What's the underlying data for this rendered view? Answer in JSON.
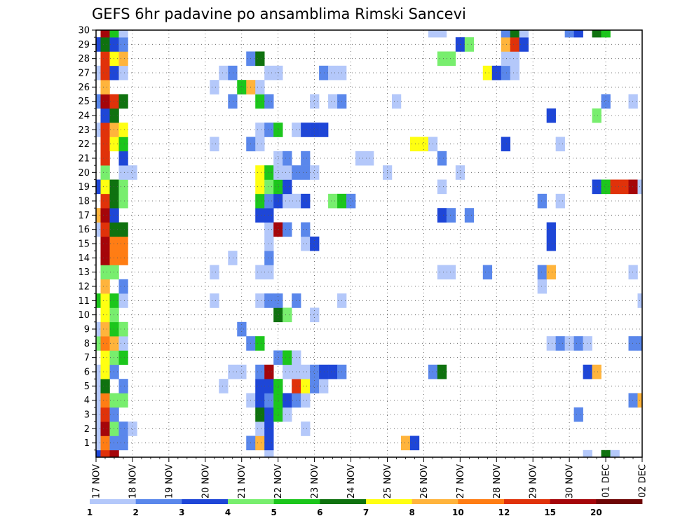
{
  "chart_data": {
    "type": "heatmap",
    "title": "GEFS 6hr padavine po ansamblima Rimski Sancevi",
    "xlabel": "",
    "ylabel": "",
    "x_tick_labels": [
      "17 NOV",
      "18 NOV",
      "19 NOV",
      "20 NOV",
      "21 NOV",
      "22 NOV",
      "23 NOV",
      "24 NOV",
      "25 NOV",
      "26 NOV",
      "27 NOV",
      "28 NOV",
      "29 NOV",
      "30 NOV",
      "01 DEC",
      "02 DEC"
    ],
    "y_tick_labels": [
      "1",
      "2",
      "3",
      "4",
      "5",
      "6",
      "7",
      "8",
      "9",
      "10",
      "11",
      "12",
      "13",
      "14",
      "15",
      "16",
      "17",
      "18",
      "19",
      "20",
      "21",
      "22",
      "23",
      "24",
      "25",
      "26",
      "27",
      "28",
      "29",
      "30"
    ],
    "y_range": [
      0,
      30
    ],
    "time_steps": 61,
    "grid": true,
    "legend_position": "bottom",
    "colorbar": {
      "tick_labels": [
        "1",
        "2",
        "3",
        "4",
        "5",
        "6",
        "7",
        "8",
        "10",
        "12",
        "15",
        "20"
      ],
      "colors": [
        "#b4c8fa",
        "#5a87eb",
        "#1e46d7",
        "#78ee6e",
        "#1cc61c",
        "#0f720f",
        "#ffff12",
        "#ffb43c",
        "#ff7d14",
        "#e0320a",
        "#a5050a",
        "#6e0505"
      ]
    },
    "cells": [
      [
        0,
        0,
        "#1e46d7"
      ],
      [
        1,
        0,
        "#e0320a"
      ],
      [
        2,
        0,
        "#a5050a"
      ],
      [
        19,
        0,
        "#b4c8fa"
      ],
      [
        54,
        0,
        "#b4c8fa"
      ],
      [
        56,
        0,
        "#0f720f"
      ],
      [
        57,
        0,
        "#b4c8fa"
      ],
      [
        0,
        1,
        "#b4c8fa"
      ],
      [
        1,
        1,
        "#ff7d14"
      ],
      [
        2,
        1,
        "#5a87eb"
      ],
      [
        3,
        1,
        "#5a87eb"
      ],
      [
        17,
        1,
        "#5a87eb"
      ],
      [
        18,
        1,
        "#ffb43c"
      ],
      [
        19,
        1,
        "#1e46d7"
      ],
      [
        34,
        1,
        "#ffb43c"
      ],
      [
        35,
        1,
        "#1e46d7"
      ],
      [
        0,
        2,
        "#b4c8fa"
      ],
      [
        1,
        2,
        "#a5050a"
      ],
      [
        2,
        2,
        "#78ee6e"
      ],
      [
        3,
        2,
        "#5a87eb"
      ],
      [
        4,
        2,
        "#b4c8fa"
      ],
      [
        18,
        2,
        "#b4c8fa"
      ],
      [
        19,
        2,
        "#1e46d7"
      ],
      [
        23,
        2,
        "#b4c8fa"
      ],
      [
        0,
        3,
        "#b4c8fa"
      ],
      [
        1,
        3,
        "#e0320a"
      ],
      [
        2,
        3,
        "#5a87eb"
      ],
      [
        18,
        3,
        "#0f720f"
      ],
      [
        19,
        3,
        "#1e46d7"
      ],
      [
        20,
        3,
        "#1cc61c"
      ],
      [
        21,
        3,
        "#b4c8fa"
      ],
      [
        53,
        3,
        "#5a87eb"
      ],
      [
        0,
        4,
        "#b4c8fa"
      ],
      [
        1,
        4,
        "#ff7d14"
      ],
      [
        2,
        4,
        "#78ee6e"
      ],
      [
        3,
        4,
        "#78ee6e"
      ],
      [
        17,
        4,
        "#b4c8fa"
      ],
      [
        18,
        4,
        "#1e46d7"
      ],
      [
        19,
        4,
        "#5a87eb"
      ],
      [
        20,
        4,
        "#1cc61c"
      ],
      [
        21,
        4,
        "#1e46d7"
      ],
      [
        22,
        4,
        "#5a87eb"
      ],
      [
        23,
        4,
        "#b4c8fa"
      ],
      [
        59,
        4,
        "#5a87eb"
      ],
      [
        60,
        4,
        "#ffb43c"
      ],
      [
        0,
        5,
        "#b4c8fa"
      ],
      [
        1,
        5,
        "#0f720f"
      ],
      [
        3,
        5,
        "#5a87eb"
      ],
      [
        14,
        5,
        "#b4c8fa"
      ],
      [
        18,
        5,
        "#1e46d7"
      ],
      [
        19,
        5,
        "#1e46d7"
      ],
      [
        20,
        5,
        "#1cc61c"
      ],
      [
        22,
        5,
        "#e0320a"
      ],
      [
        23,
        5,
        "#ffff12"
      ],
      [
        24,
        5,
        "#5a87eb"
      ],
      [
        25,
        5,
        "#b4c8fa"
      ],
      [
        0,
        6,
        "#b4c8fa"
      ],
      [
        1,
        6,
        "#ffff12"
      ],
      [
        2,
        6,
        "#5a87eb"
      ],
      [
        15,
        6,
        "#b4c8fa"
      ],
      [
        16,
        6,
        "#b4c8fa"
      ],
      [
        18,
        6,
        "#5a87eb"
      ],
      [
        19,
        6,
        "#a5050a"
      ],
      [
        21,
        6,
        "#b4c8fa"
      ],
      [
        22,
        6,
        "#b4c8fa"
      ],
      [
        23,
        6,
        "#b4c8fa"
      ],
      [
        24,
        6,
        "#5a87eb"
      ],
      [
        25,
        6,
        "#1e46d7"
      ],
      [
        26,
        6,
        "#1e46d7"
      ],
      [
        27,
        6,
        "#5a87eb"
      ],
      [
        37,
        6,
        "#5a87eb"
      ],
      [
        38,
        6,
        "#0f720f"
      ],
      [
        54,
        6,
        "#1e46d7"
      ],
      [
        55,
        6,
        "#ffb43c"
      ],
      [
        1,
        7,
        "#ffff12"
      ],
      [
        2,
        7,
        "#78ee6e"
      ],
      [
        3,
        7,
        "#1cc61c"
      ],
      [
        20,
        7,
        "#5a87eb"
      ],
      [
        21,
        7,
        "#1cc61c"
      ],
      [
        22,
        7,
        "#b4c8fa"
      ],
      [
        0,
        8,
        "#78ee6e"
      ],
      [
        1,
        8,
        "#ff7d14"
      ],
      [
        2,
        8,
        "#ffb43c"
      ],
      [
        3,
        8,
        "#b4c8fa"
      ],
      [
        17,
        8,
        "#5a87eb"
      ],
      [
        18,
        8,
        "#1cc61c"
      ],
      [
        50,
        8,
        "#b4c8fa"
      ],
      [
        51,
        8,
        "#5a87eb"
      ],
      [
        52,
        8,
        "#b4c8fa"
      ],
      [
        53,
        8,
        "#5a87eb"
      ],
      [
        54,
        8,
        "#b4c8fa"
      ],
      [
        59,
        8,
        "#5a87eb"
      ],
      [
        60,
        8,
        "#5a87eb"
      ],
      [
        0,
        9,
        "#b4c8fa"
      ],
      [
        1,
        9,
        "#ffb43c"
      ],
      [
        2,
        9,
        "#1cc61c"
      ],
      [
        3,
        9,
        "#78ee6e"
      ],
      [
        16,
        9,
        "#5a87eb"
      ],
      [
        1,
        10,
        "#ffff12"
      ],
      [
        2,
        10,
        "#78ee6e"
      ],
      [
        20,
        10,
        "#0f720f"
      ],
      [
        21,
        10,
        "#78ee6e"
      ],
      [
        24,
        10,
        "#b4c8fa"
      ],
      [
        0,
        11,
        "#1cc61c"
      ],
      [
        1,
        11,
        "#ffff12"
      ],
      [
        2,
        11,
        "#1cc61c"
      ],
      [
        3,
        11,
        "#b4c8fa"
      ],
      [
        13,
        11,
        "#b4c8fa"
      ],
      [
        18,
        11,
        "#b4c8fa"
      ],
      [
        19,
        11,
        "#5a87eb"
      ],
      [
        20,
        11,
        "#5a87eb"
      ],
      [
        22,
        11,
        "#5a87eb"
      ],
      [
        27,
        11,
        "#b4c8fa"
      ],
      [
        60,
        11,
        "#b4c8fa"
      ],
      [
        1,
        12,
        "#ffb43c"
      ],
      [
        3,
        12,
        "#5a87eb"
      ],
      [
        49,
        12,
        "#b4c8fa"
      ],
      [
        1,
        13,
        "#78ee6e"
      ],
      [
        2,
        13,
        "#78ee6e"
      ],
      [
        13,
        13,
        "#b4c8fa"
      ],
      [
        18,
        13,
        "#b4c8fa"
      ],
      [
        19,
        13,
        "#b4c8fa"
      ],
      [
        38,
        13,
        "#b4c8fa"
      ],
      [
        39,
        13,
        "#b4c8fa"
      ],
      [
        43,
        13,
        "#5a87eb"
      ],
      [
        49,
        13,
        "#5a87eb"
      ],
      [
        50,
        13,
        "#ffb43c"
      ],
      [
        59,
        13,
        "#b4c8fa"
      ],
      [
        1,
        14,
        "#a5050a"
      ],
      [
        2,
        14,
        "#ff7d14"
      ],
      [
        3,
        14,
        "#ff7d14"
      ],
      [
        15,
        14,
        "#b4c8fa"
      ],
      [
        19,
        14,
        "#5a87eb"
      ],
      [
        1,
        15,
        "#a5050a"
      ],
      [
        2,
        15,
        "#ff7d14"
      ],
      [
        3,
        15,
        "#ff7d14"
      ],
      [
        19,
        15,
        "#b4c8fa"
      ],
      [
        23,
        15,
        "#b4c8fa"
      ],
      [
        24,
        15,
        "#1e46d7"
      ],
      [
        50,
        15,
        "#1e46d7"
      ],
      [
        0,
        16,
        "#b4c8fa"
      ],
      [
        1,
        16,
        "#e0320a"
      ],
      [
        2,
        16,
        "#0f720f"
      ],
      [
        3,
        16,
        "#0f720f"
      ],
      [
        19,
        16,
        "#b4c8fa"
      ],
      [
        20,
        16,
        "#a5050a"
      ],
      [
        21,
        16,
        "#5a87eb"
      ],
      [
        23,
        16,
        "#5a87eb"
      ],
      [
        50,
        16,
        "#1e46d7"
      ],
      [
        0,
        17,
        "#ffb43c"
      ],
      [
        1,
        17,
        "#a5050a"
      ],
      [
        2,
        17,
        "#1e46d7"
      ],
      [
        18,
        17,
        "#1e46d7"
      ],
      [
        19,
        17,
        "#1e46d7"
      ],
      [
        38,
        17,
        "#1e46d7"
      ],
      [
        39,
        17,
        "#5a87eb"
      ],
      [
        41,
        17,
        "#5a87eb"
      ],
      [
        1,
        18,
        "#e0320a"
      ],
      [
        2,
        18,
        "#0f720f"
      ],
      [
        3,
        18,
        "#78ee6e"
      ],
      [
        18,
        18,
        "#1cc61c"
      ],
      [
        19,
        18,
        "#5a87eb"
      ],
      [
        20,
        18,
        "#1e46d7"
      ],
      [
        21,
        18,
        "#b4c8fa"
      ],
      [
        22,
        18,
        "#b4c8fa"
      ],
      [
        23,
        18,
        "#1e46d7"
      ],
      [
        26,
        18,
        "#78ee6e"
      ],
      [
        27,
        18,
        "#1cc61c"
      ],
      [
        28,
        18,
        "#5a87eb"
      ],
      [
        49,
        18,
        "#5a87eb"
      ],
      [
        51,
        18,
        "#b4c8fa"
      ],
      [
        0,
        19,
        "#1e46d7"
      ],
      [
        1,
        19,
        "#ffff12"
      ],
      [
        2,
        19,
        "#0f720f"
      ],
      [
        3,
        19,
        "#78ee6e"
      ],
      [
        18,
        19,
        "#ffff12"
      ],
      [
        19,
        19,
        "#78ee6e"
      ],
      [
        20,
        19,
        "#1cc61c"
      ],
      [
        21,
        19,
        "#1e46d7"
      ],
      [
        38,
        19,
        "#b4c8fa"
      ],
      [
        55,
        19,
        "#1e46d7"
      ],
      [
        56,
        19,
        "#1cc61c"
      ],
      [
        57,
        19,
        "#e0320a"
      ],
      [
        58,
        19,
        "#e0320a"
      ],
      [
        59,
        19,
        "#a5050a"
      ],
      [
        60,
        19,
        "#b4c8fa"
      ],
      [
        1,
        20,
        "#78ee6e"
      ],
      [
        3,
        20,
        "#b4c8fa"
      ],
      [
        4,
        20,
        "#b4c8fa"
      ],
      [
        18,
        20,
        "#ffff12"
      ],
      [
        19,
        20,
        "#1cc61c"
      ],
      [
        20,
        20,
        "#b4c8fa"
      ],
      [
        21,
        20,
        "#b4c8fa"
      ],
      [
        22,
        20,
        "#5a87eb"
      ],
      [
        23,
        20,
        "#5a87eb"
      ],
      [
        24,
        20,
        "#b4c8fa"
      ],
      [
        32,
        20,
        "#b4c8fa"
      ],
      [
        40,
        20,
        "#b4c8fa"
      ],
      [
        1,
        21,
        "#e0320a"
      ],
      [
        3,
        21,
        "#1e46d7"
      ],
      [
        20,
        21,
        "#b4c8fa"
      ],
      [
        21,
        21,
        "#5a87eb"
      ],
      [
        23,
        21,
        "#5a87eb"
      ],
      [
        29,
        21,
        "#b4c8fa"
      ],
      [
        30,
        21,
        "#b4c8fa"
      ],
      [
        38,
        21,
        "#5a87eb"
      ],
      [
        1,
        22,
        "#e0320a"
      ],
      [
        2,
        22,
        "#ffff12"
      ],
      [
        3,
        22,
        "#1cc61c"
      ],
      [
        13,
        22,
        "#b4c8fa"
      ],
      [
        17,
        22,
        "#5a87eb"
      ],
      [
        18,
        22,
        "#b4c8fa"
      ],
      [
        35,
        22,
        "#ffff12"
      ],
      [
        36,
        22,
        "#ffff12"
      ],
      [
        37,
        22,
        "#b4c8fa"
      ],
      [
        45,
        22,
        "#1e46d7"
      ],
      [
        51,
        22,
        "#b4c8fa"
      ],
      [
        0,
        23,
        "#b4c8fa"
      ],
      [
        1,
        23,
        "#e0320a"
      ],
      [
        2,
        23,
        "#ffb43c"
      ],
      [
        3,
        23,
        "#ffff12"
      ],
      [
        18,
        23,
        "#b4c8fa"
      ],
      [
        19,
        23,
        "#5a87eb"
      ],
      [
        20,
        23,
        "#1cc61c"
      ],
      [
        22,
        23,
        "#b4c8fa"
      ],
      [
        23,
        23,
        "#1e46d7"
      ],
      [
        24,
        23,
        "#1e46d7"
      ],
      [
        25,
        23,
        "#1e46d7"
      ],
      [
        1,
        24,
        "#1e46d7"
      ],
      [
        2,
        24,
        "#0f720f"
      ],
      [
        50,
        24,
        "#1e46d7"
      ],
      [
        55,
        24,
        "#78ee6e"
      ],
      [
        0,
        25,
        "#5a87eb"
      ],
      [
        1,
        25,
        "#a5050a"
      ],
      [
        2,
        25,
        "#e0320a"
      ],
      [
        3,
        25,
        "#0f720f"
      ],
      [
        15,
        25,
        "#5a87eb"
      ],
      [
        18,
        25,
        "#1cc61c"
      ],
      [
        19,
        25,
        "#5a87eb"
      ],
      [
        24,
        25,
        "#b4c8fa"
      ],
      [
        26,
        25,
        "#b4c8fa"
      ],
      [
        27,
        25,
        "#5a87eb"
      ],
      [
        33,
        25,
        "#b4c8fa"
      ],
      [
        56,
        25,
        "#5a87eb"
      ],
      [
        59,
        25,
        "#b4c8fa"
      ],
      [
        1,
        26,
        "#ffb43c"
      ],
      [
        13,
        26,
        "#b4c8fa"
      ],
      [
        16,
        26,
        "#1cc61c"
      ],
      [
        17,
        26,
        "#ffb43c"
      ],
      [
        18,
        26,
        "#b4c8fa"
      ],
      [
        0,
        27,
        "#b4c8fa"
      ],
      [
        1,
        27,
        "#e0320a"
      ],
      [
        2,
        27,
        "#1e46d7"
      ],
      [
        3,
        27,
        "#b4c8fa"
      ],
      [
        14,
        27,
        "#b4c8fa"
      ],
      [
        15,
        27,
        "#5a87eb"
      ],
      [
        19,
        27,
        "#b4c8fa"
      ],
      [
        20,
        27,
        "#b4c8fa"
      ],
      [
        25,
        27,
        "#5a87eb"
      ],
      [
        26,
        27,
        "#b4c8fa"
      ],
      [
        27,
        27,
        "#b4c8fa"
      ],
      [
        43,
        27,
        "#ffff12"
      ],
      [
        44,
        27,
        "#1e46d7"
      ],
      [
        45,
        27,
        "#5a87eb"
      ],
      [
        46,
        27,
        "#b4c8fa"
      ],
      [
        1,
        28,
        "#e0320a"
      ],
      [
        2,
        28,
        "#ffff12"
      ],
      [
        3,
        28,
        "#ffb43c"
      ],
      [
        17,
        28,
        "#5a87eb"
      ],
      [
        18,
        28,
        "#0f720f"
      ],
      [
        38,
        28,
        "#78ee6e"
      ],
      [
        39,
        28,
        "#78ee6e"
      ],
      [
        45,
        28,
        "#b4c8fa"
      ],
      [
        46,
        28,
        "#b4c8fa"
      ],
      [
        0,
        29,
        "#1e46d7"
      ],
      [
        1,
        29,
        "#0f720f"
      ],
      [
        2,
        29,
        "#1e46d7"
      ],
      [
        3,
        29,
        "#5a87eb"
      ],
      [
        40,
        29,
        "#1e46d7"
      ],
      [
        41,
        29,
        "#78ee6e"
      ],
      [
        45,
        29,
        "#ffb43c"
      ],
      [
        46,
        29,
        "#e0320a"
      ],
      [
        47,
        29,
        "#1e46d7"
      ],
      [
        1,
        30,
        "#a5050a"
      ],
      [
        2,
        30,
        "#1cc61c"
      ],
      [
        3,
        30,
        "#b4c8fa"
      ],
      [
        37,
        30,
        "#b4c8fa"
      ],
      [
        38,
        30,
        "#b4c8fa"
      ],
      [
        45,
        30,
        "#5a87eb"
      ],
      [
        46,
        30,
        "#0f720f"
      ],
      [
        47,
        30,
        "#b4c8fa"
      ],
      [
        52,
        30,
        "#5a87eb"
      ],
      [
        53,
        30,
        "#1e46d7"
      ],
      [
        55,
        30,
        "#0f720f"
      ],
      [
        56,
        30,
        "#1cc61c"
      ]
    ]
  }
}
